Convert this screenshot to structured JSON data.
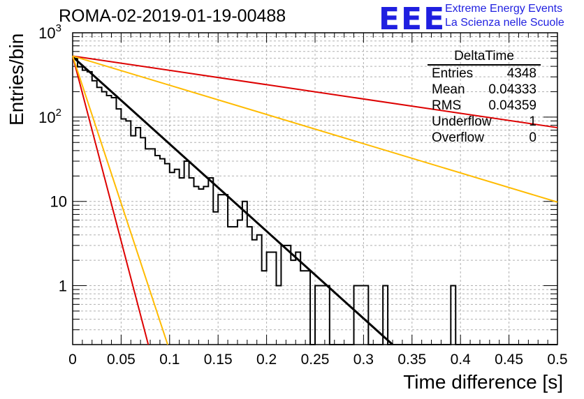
{
  "header": {
    "title": "ROMA-02-2019-01-19-00488",
    "logo": "EEE",
    "logo_line1": "Extreme Energy Events",
    "logo_line2": "La Scienza nelle Scuole"
  },
  "stats_box": {
    "name": "DeltaTime",
    "rows": [
      {
        "label": "Entries",
        "value": "4348"
      },
      {
        "label": "Mean",
        "value": "0.04333"
      },
      {
        "label": "RMS",
        "value": "0.04359"
      },
      {
        "label": "Underflow",
        "value": "1"
      },
      {
        "label": "Overflow",
        "value": "0"
      }
    ]
  },
  "chart_data": {
    "type": "histogram",
    "title": "ROMA-02-2019-01-19-00488",
    "xlabel": "Time difference [s]",
    "ylabel": "Entries/bin",
    "xlim": [
      0,
      0.5
    ],
    "ylim": [
      0.2,
      1000
    ],
    "yscale": "log",
    "grid": true,
    "x_ticks": [
      "0",
      "0.05",
      "0.1",
      "0.15",
      "0.2",
      "0.25",
      "0.3",
      "0.35",
      "0.4",
      "0.45",
      "0.5"
    ],
    "y_ticks": [
      "1",
      "10",
      "10^2",
      "10^3"
    ],
    "bin_width": 0.005,
    "histogram_bins": [
      490,
      395,
      360,
      345,
      270,
      225,
      200,
      180,
      170,
      125,
      95,
      90,
      60,
      75,
      57,
      42,
      42,
      35,
      32,
      28,
      22,
      24,
      19,
      30,
      19,
      15,
      14,
      15,
      19,
      7.5,
      12,
      12,
      5,
      5,
      6,
      10,
      5,
      3.5,
      4,
      1.5,
      2.5,
      2.5,
      1,
      3,
      3,
      2,
      2.5,
      1.5,
      1.5,
      0,
      1,
      1,
      1,
      0,
      0,
      0,
      0,
      0,
      1,
      1,
      1,
      0,
      0,
      0,
      1,
      0,
      0,
      0,
      0,
      0,
      0,
      0,
      0,
      0,
      0,
      0,
      0,
      0,
      1,
      0,
      0,
      0,
      0,
      0,
      0,
      0,
      0,
      0,
      0,
      0,
      0,
      0,
      0,
      0,
      0,
      0,
      0,
      0,
      0,
      0
    ],
    "fit_lines": [
      {
        "color": "#000000",
        "points": [
          [
            0,
            520
          ],
          [
            0.33,
            0.2
          ]
        ]
      },
      {
        "color": "#dd0000",
        "points": [
          [
            0,
            530
          ],
          [
            0.5,
            75
          ]
        ]
      },
      {
        "color": "#ffbb00",
        "points": [
          [
            0,
            530
          ],
          [
            0.5,
            9.8
          ]
        ]
      },
      {
        "color": "#dd0000",
        "points": [
          [
            0,
            530
          ],
          [
            0.078,
            0.2
          ]
        ]
      },
      {
        "color": "#ffbb00",
        "points": [
          [
            0,
            530
          ],
          [
            0.098,
            0.2
          ]
        ]
      }
    ],
    "colors": {
      "histogram": "#000000",
      "axis": "#000000",
      "grid": "#b0b0b0"
    }
  }
}
